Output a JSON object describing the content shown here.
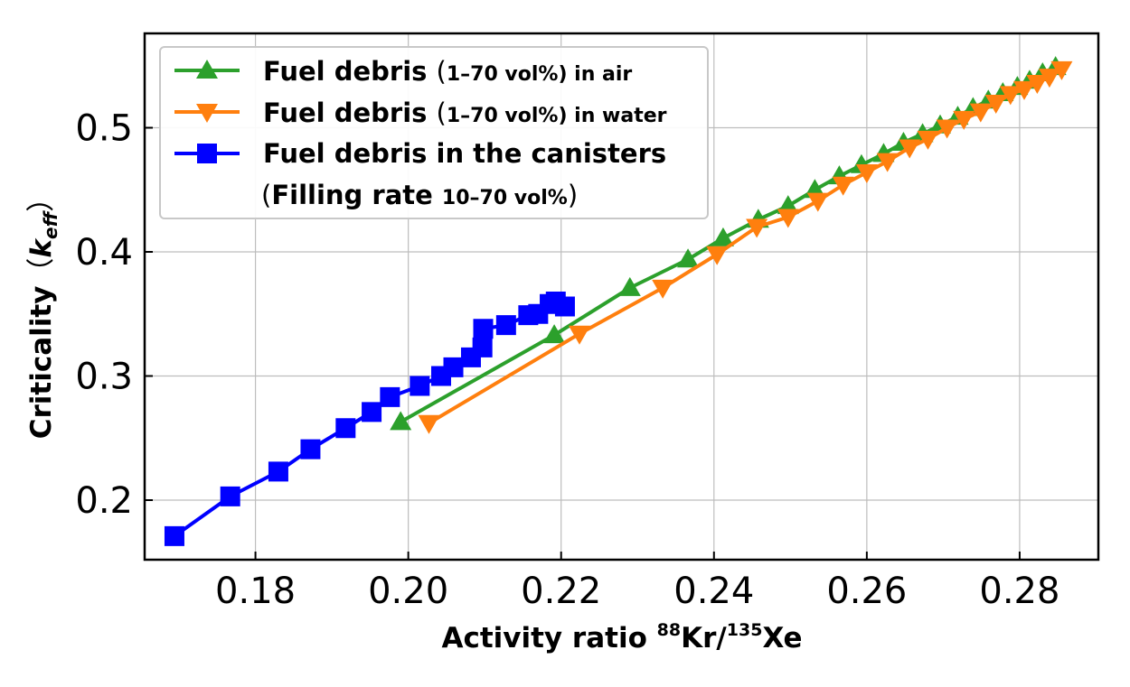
{
  "chart_data": {
    "type": "line",
    "xlabel": {
      "main": "Activity ratio ",
      "sup1": "88",
      "mid": "Kr/",
      "sup2": "135",
      "end": "Xe"
    },
    "ylabel": {
      "main": "Criticality",
      "paren_open": "（",
      "symbol": "k",
      "sub": "eff",
      "paren_close": "）"
    },
    "xlim": [
      0.1655,
      0.2903
    ],
    "ylim": [
      0.152,
      0.576
    ],
    "xticks": [
      "0.18",
      "0.20",
      "0.22",
      "0.24",
      "0.26",
      "0.28"
    ],
    "xtick_values": [
      0.18,
      0.2,
      0.22,
      0.24,
      0.26,
      0.28
    ],
    "yticks": [
      "0.2",
      "0.3",
      "0.4",
      "0.5"
    ],
    "ytick_values": [
      0.2,
      0.3,
      0.4,
      0.5
    ],
    "grid": true,
    "legend_position": "upper-left",
    "series": [
      {
        "name": "Fuel debris (1–70 vol%) in air",
        "legend_parts": [
          "Fuel debris ",
          "(",
          "1–70 vol%) in air"
        ],
        "color": "#2ca02c",
        "marker": "triangle-up",
        "x": [
          0.199,
          0.2191,
          0.229,
          0.2366,
          0.2412,
          0.2458,
          0.2497,
          0.2532,
          0.2564,
          0.2593,
          0.2622,
          0.2648,
          0.2673,
          0.2696,
          0.2719,
          0.2739,
          0.2759,
          0.2778,
          0.2797,
          0.2813,
          0.283,
          0.2847
        ],
        "y": [
          0.263,
          0.333,
          0.371,
          0.394,
          0.411,
          0.426,
          0.437,
          0.45,
          0.461,
          0.47,
          0.479,
          0.488,
          0.495,
          0.502,
          0.509,
          0.516,
          0.522,
          0.528,
          0.533,
          0.538,
          0.544,
          0.549
        ]
      },
      {
        "name": "Fuel debris (1–70 vol%) in water",
        "legend_parts": [
          "Fuel debris ",
          "(",
          "1–70 vol%) in water"
        ],
        "color": "#ff7f0e",
        "marker": "triangle-down",
        "x": [
          0.2027,
          0.2224,
          0.2333,
          0.2404,
          0.2456,
          0.2497,
          0.2536,
          0.2569,
          0.26,
          0.2627,
          0.2656,
          0.268,
          0.2705,
          0.2727,
          0.2749,
          0.2769,
          0.2788,
          0.2806,
          0.2823,
          0.2839,
          0.2855
        ],
        "y": [
          0.262,
          0.334,
          0.371,
          0.398,
          0.42,
          0.428,
          0.441,
          0.454,
          0.464,
          0.473,
          0.484,
          0.491,
          0.5,
          0.507,
          0.513,
          0.52,
          0.527,
          0.531,
          0.536,
          0.541,
          0.547
        ]
      },
      {
        "name": "Fuel debris in the canisters (Filling rate 10–70 vol%)",
        "legend_parts": [
          "Fuel debris in the canisters",
          "(",
          "Filling rate ",
          "10–70 vol%",
          ")"
        ],
        "color": "#0000ff",
        "marker": "square",
        "x": [
          0.1694,
          0.1767,
          0.183,
          0.1872,
          0.1918,
          0.1952,
          0.1976,
          0.2015,
          0.2043,
          0.2059,
          0.2082,
          0.2097,
          0.2098,
          0.2128,
          0.2157,
          0.217,
          0.2185,
          0.2193,
          0.2205
        ],
        "y": [
          0.171,
          0.203,
          0.223,
          0.241,
          0.258,
          0.271,
          0.283,
          0.292,
          0.3,
          0.307,
          0.315,
          0.323,
          0.338,
          0.341,
          0.349,
          0.35,
          0.358,
          0.36,
          0.356
        ]
      }
    ]
  }
}
